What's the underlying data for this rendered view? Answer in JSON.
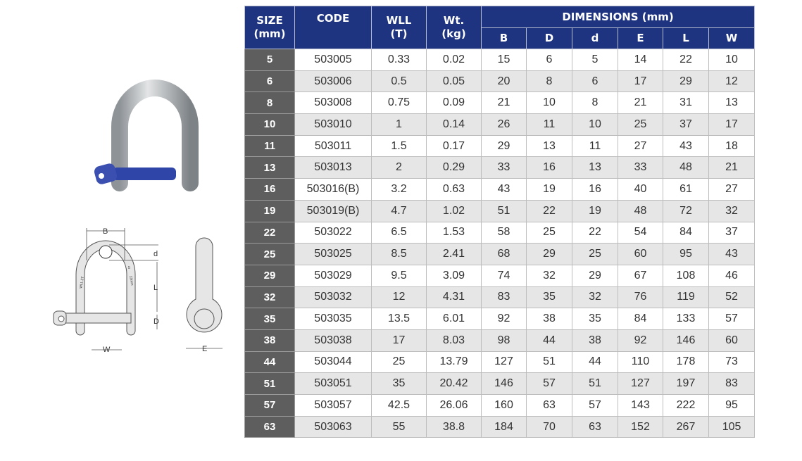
{
  "colors": {
    "header": "#1f3480",
    "size_column": "#5e5e5e",
    "alt_row": "#e6e6e6",
    "shackle_pin": "#2f45a8"
  },
  "diagram": {
    "labels": {
      "B": "B",
      "d": "d",
      "L": "L",
      "D": "D",
      "W": "W",
      "E": "E"
    },
    "engraving": [
      "WLL 2T",
      "13mm",
      "5"
    ]
  },
  "table": {
    "headers": {
      "size": "SIZE",
      "size_unit": "(mm)",
      "code": "CODE",
      "wll": "WLL",
      "wll_unit": "(T)",
      "wt": "Wt.",
      "wt_unit": "(kg)",
      "dimensions": "DIMENSIONS (mm)"
    },
    "dim_headers": [
      "B",
      "D",
      "d",
      "E",
      "L",
      "W"
    ],
    "rows": [
      [
        "5",
        "503005",
        "0.33",
        "0.02",
        "15",
        "6",
        "5",
        "14",
        "22",
        "10"
      ],
      [
        "6",
        "503006",
        "0.5",
        "0.05",
        "20",
        "8",
        "6",
        "17",
        "29",
        "12"
      ],
      [
        "8",
        "503008",
        "0.75",
        "0.09",
        "21",
        "10",
        "8",
        "21",
        "31",
        "13"
      ],
      [
        "10",
        "503010",
        "1",
        "0.14",
        "26",
        "11",
        "10",
        "25",
        "37",
        "17"
      ],
      [
        "11",
        "503011",
        "1.5",
        "0.17",
        "29",
        "13",
        "11",
        "27",
        "43",
        "18"
      ],
      [
        "13",
        "503013",
        "2",
        "0.29",
        "33",
        "16",
        "13",
        "33",
        "48",
        "21"
      ],
      [
        "16",
        "503016(B)",
        "3.2",
        "0.63",
        "43",
        "19",
        "16",
        "40",
        "61",
        "27"
      ],
      [
        "19",
        "503019(B)",
        "4.7",
        "1.02",
        "51",
        "22",
        "19",
        "48",
        "72",
        "32"
      ],
      [
        "22",
        "503022",
        "6.5",
        "1.53",
        "58",
        "25",
        "22",
        "54",
        "84",
        "37"
      ],
      [
        "25",
        "503025",
        "8.5",
        "2.41",
        "68",
        "29",
        "25",
        "60",
        "95",
        "43"
      ],
      [
        "29",
        "503029",
        "9.5",
        "3.09",
        "74",
        "32",
        "29",
        "67",
        "108",
        "46"
      ],
      [
        "32",
        "503032",
        "12",
        "4.31",
        "83",
        "35",
        "32",
        "76",
        "119",
        "52"
      ],
      [
        "35",
        "503035",
        "13.5",
        "6.01",
        "92",
        "38",
        "35",
        "84",
        "133",
        "57"
      ],
      [
        "38",
        "503038",
        "17",
        "8.03",
        "98",
        "44",
        "38",
        "92",
        "146",
        "60"
      ],
      [
        "44",
        "503044",
        "25",
        "13.79",
        "127",
        "51",
        "44",
        "110",
        "178",
        "73"
      ],
      [
        "51",
        "503051",
        "35",
        "20.42",
        "146",
        "57",
        "51",
        "127",
        "197",
        "83"
      ],
      [
        "57",
        "503057",
        "42.5",
        "26.06",
        "160",
        "63",
        "57",
        "143",
        "222",
        "95"
      ],
      [
        "63",
        "503063",
        "55",
        "38.8",
        "184",
        "70",
        "63",
        "152",
        "267",
        "105"
      ]
    ]
  }
}
